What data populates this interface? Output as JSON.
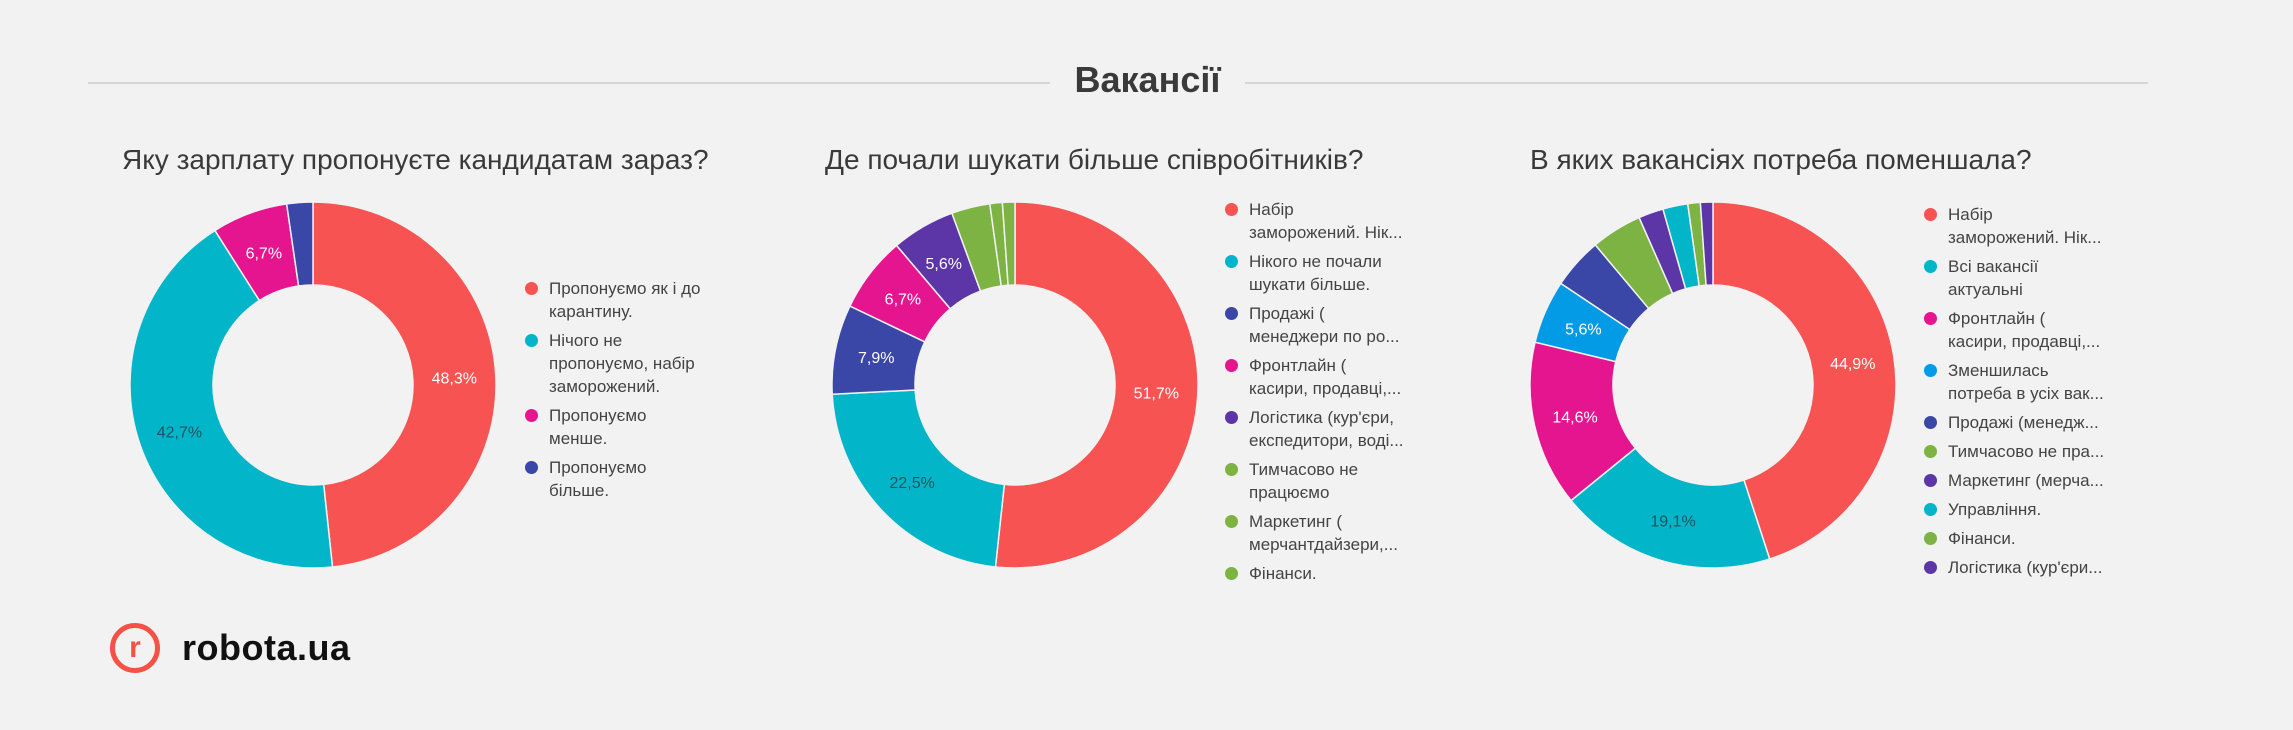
{
  "header": {
    "title": "Вакансії"
  },
  "brand": {
    "mark": "r",
    "name": "robota.ua",
    "color": "#f45147"
  },
  "chart_data": [
    {
      "type": "pie",
      "donut": true,
      "title": "Яку зарплату пропонуєте кандидатам зараз?",
      "categories": [
        "Пропонуємо як і до карантину.",
        "Нічого не пропонуємо, набір заморожений.",
        "Пропонуємо менше.",
        "Пропонуємо більше."
      ],
      "values": [
        48.3,
        42.7,
        6.7,
        2.3
      ],
      "colors": [
        "#f65352",
        "#03b5c9",
        "#e5158f",
        "#3a47a6"
      ],
      "data_labels": [
        "48,3%",
        "42,7%",
        "6,7%",
        ""
      ],
      "legend": [
        "Пропонуємо як і до\nкарантину.",
        "Нічого не\nпропонуємо, набір\nзаморожений.",
        "Пропонуємо\nменше.",
        "Пропонуємо\nбільше."
      ],
      "legend_position": "right"
    },
    {
      "type": "pie",
      "donut": true,
      "title": "Де почали шукати більше співробітників?",
      "categories": [
        "Набір заморожений. Нік...",
        "Нікого не почали шукати більше.",
        "Продажі ( менеджери по ро...",
        "Фронтлайн ( касири, продавці,...",
        "Логістика (кур'єри, експедитори, воді...",
        "Тимчасово не працюємо",
        "Маркетинг ( мерчантдайзери,...",
        "Фінанси."
      ],
      "values": [
        51.7,
        22.5,
        7.9,
        6.7,
        5.6,
        3.4,
        1.1,
        1.1
      ],
      "colors": [
        "#f65352",
        "#03b5c9",
        "#3a47a6",
        "#e5158f",
        "#5c35a6",
        "#7cb342",
        "#7cb342",
        "#7cb342"
      ],
      "data_labels": [
        "51,7%",
        "22,5%",
        "7,9%",
        "6,7%",
        "5,6%",
        "",
        "",
        ""
      ],
      "legend": [
        "Набір\nзаморожений. Нік...",
        "Нікого не почали\nшукати більше.",
        "Продажі (\nменеджери по ро...",
        "Фронтлайн (\nкасири, продавці,...",
        "Логістика (кур'єри,\nекспедитори, воді...",
        "Тимчасово не\nпрацюємо",
        "Маркетинг (\nмерчантдайзери,...",
        "Фінанси."
      ],
      "legend_position": "right"
    },
    {
      "type": "pie",
      "donut": true,
      "title": "В яких вакансіях потреба поменшала?",
      "categories": [
        "Набір заморожений. Нік...",
        "Всі вакансії актуальні",
        "Фронтлайн ( касири, продавці,...",
        "Зменшилась потреба в усіх вак...",
        "Продажі (менедж...",
        "Тимчасово не пра...",
        "Маркетинг (мерча...",
        "Управління.",
        "Фінанси.",
        "Логістика (кур'єри..."
      ],
      "values": [
        44.9,
        19.1,
        14.6,
        5.6,
        4.5,
        4.5,
        2.2,
        2.2,
        1.1,
        1.1
      ],
      "colors": [
        "#f65352",
        "#03b5c9",
        "#e5158f",
        "#039be5",
        "#3a47a6",
        "#7cb342",
        "#5c35a6",
        "#03b5c9",
        "#7cb342",
        "#5c35a6"
      ],
      "data_labels": [
        "44,9%",
        "19,1%",
        "14,6%",
        "5,6%",
        "",
        "",
        "",
        "",
        "",
        ""
      ],
      "legend": [
        "Набір\nзаморожений. Нік...",
        "Всі вакансії\nактуальні",
        "Фронтлайн (\nкасири, продавці,...",
        "Зменшилась\nпотреба в усіх вак...",
        "Продажі (менедж...",
        "Тимчасово не пра...",
        "Маркетинг (мерча...",
        "Управління.",
        "Фінанси.",
        "Логістика (кур'єри..."
      ],
      "legend_position": "right"
    }
  ]
}
